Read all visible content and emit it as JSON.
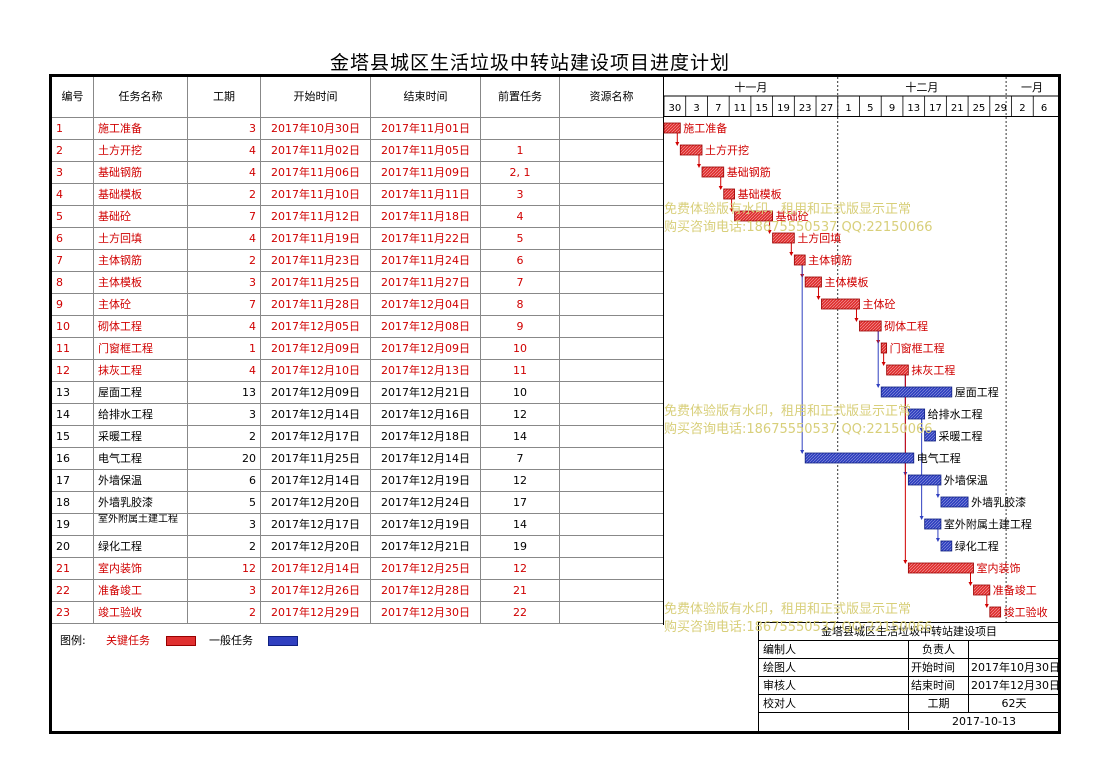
{
  "title": "金塔县城区生活垃圾中转站建设项目进度计划",
  "columns": {
    "id": "编号",
    "name": "任务名称",
    "duration": "工期",
    "start": "开始时间",
    "end": "结束时间",
    "pred": "前置任务",
    "resource": "资源名称"
  },
  "timeline": {
    "months": [
      "十一月",
      "十二月",
      "一月"
    ],
    "days": [
      "30",
      "3",
      "7",
      "11",
      "15",
      "19",
      "23",
      "27",
      "1",
      "5",
      "9",
      "13",
      "17",
      "21",
      "25",
      "29",
      "2",
      "6"
    ]
  },
  "tasks": [
    {
      "id": "1",
      "name": "施工准备",
      "duration": "3",
      "start": "2017年10月30日",
      "end": "2017年11月01日",
      "pred": "",
      "critical": true
    },
    {
      "id": "2",
      "name": "土方开挖",
      "duration": "4",
      "start": "2017年11月02日",
      "end": "2017年11月05日",
      "pred": "1",
      "critical": true
    },
    {
      "id": "3",
      "name": "基础钢筋",
      "duration": "4",
      "start": "2017年11月06日",
      "end": "2017年11月09日",
      "pred": "2, 1",
      "critical": true
    },
    {
      "id": "4",
      "name": "基础模板",
      "duration": "2",
      "start": "2017年11月10日",
      "end": "2017年11月11日",
      "pred": "3",
      "critical": true
    },
    {
      "id": "5",
      "name": "基础砼",
      "duration": "7",
      "start": "2017年11月12日",
      "end": "2017年11月18日",
      "pred": "4",
      "critical": true
    },
    {
      "id": "6",
      "name": "土方回填",
      "duration": "4",
      "start": "2017年11月19日",
      "end": "2017年11月22日",
      "pred": "5",
      "critical": true
    },
    {
      "id": "7",
      "name": "主体钢筋",
      "duration": "2",
      "start": "2017年11月23日",
      "end": "2017年11月24日",
      "pred": "6",
      "critical": true
    },
    {
      "id": "8",
      "name": "主体模板",
      "duration": "3",
      "start": "2017年11月25日",
      "end": "2017年11月27日",
      "pred": "7",
      "critical": true
    },
    {
      "id": "9",
      "name": "主体砼",
      "duration": "7",
      "start": "2017年11月28日",
      "end": "2017年12月04日",
      "pred": "8",
      "critical": true
    },
    {
      "id": "10",
      "name": "砌体工程",
      "duration": "4",
      "start": "2017年12月05日",
      "end": "2017年12月08日",
      "pred": "9",
      "critical": true
    },
    {
      "id": "11",
      "name": "门窗框工程",
      "duration": "1",
      "start": "2017年12月09日",
      "end": "2017年12月09日",
      "pred": "10",
      "critical": true
    },
    {
      "id": "12",
      "name": "抹灰工程",
      "duration": "4",
      "start": "2017年12月10日",
      "end": "2017年12月13日",
      "pred": "11",
      "critical": true
    },
    {
      "id": "13",
      "name": "屋面工程",
      "duration": "13",
      "start": "2017年12月09日",
      "end": "2017年12月21日",
      "pred": "10",
      "critical": false
    },
    {
      "id": "14",
      "name": "给排水工程",
      "duration": "3",
      "start": "2017年12月14日",
      "end": "2017年12月16日",
      "pred": "12",
      "critical": false
    },
    {
      "id": "15",
      "name": "采暖工程",
      "duration": "2",
      "start": "2017年12月17日",
      "end": "2017年12月18日",
      "pred": "14",
      "critical": false
    },
    {
      "id": "16",
      "name": "电气工程",
      "duration": "20",
      "start": "2017年11月25日",
      "end": "2017年12月14日",
      "pred": "7",
      "critical": false
    },
    {
      "id": "17",
      "name": "外墙保温",
      "duration": "6",
      "start": "2017年12月14日",
      "end": "2017年12月19日",
      "pred": "12",
      "critical": false
    },
    {
      "id": "18",
      "name": "外墙乳胶漆",
      "duration": "5",
      "start": "2017年12月20日",
      "end": "2017年12月24日",
      "pred": "17",
      "critical": false
    },
    {
      "id": "19",
      "name": "室外附属土建工程",
      "duration": "3",
      "start": "2017年12月17日",
      "end": "2017年12月19日",
      "pred": "14",
      "critical": false
    },
    {
      "id": "20",
      "name": "绿化工程",
      "duration": "2",
      "start": "2017年12月20日",
      "end": "2017年12月21日",
      "pred": "19",
      "critical": false
    },
    {
      "id": "21",
      "name": "室内装饰",
      "duration": "12",
      "start": "2017年12月14日",
      "end": "2017年12月25日",
      "pred": "12",
      "critical": true
    },
    {
      "id": "22",
      "name": "准备竣工",
      "duration": "3",
      "start": "2017年12月26日",
      "end": "2017年12月28日",
      "pred": "21",
      "critical": true
    },
    {
      "id": "23",
      "name": "竣工验收",
      "duration": "2",
      "start": "2017年12月29日",
      "end": "2017年12月30日",
      "pred": "22",
      "critical": true
    }
  ],
  "legend": {
    "label": "图例:",
    "critical": "关键任务",
    "normal": "一般任务"
  },
  "colors": {
    "critical": "#d00000",
    "critical_fill": "#e03030",
    "normal_fill": "#3040c0",
    "watermark": "#d8cf7a"
  },
  "signoff": {
    "project": "金塔县城区生活垃圾中转站建设项目",
    "editor": "编制人",
    "owner": "负责人",
    "drawer": "绘图人",
    "start_label": "开始时间",
    "start_value": "2017年10月30日",
    "reviewer": "审核人",
    "end_label": "结束时间",
    "end_value": "2017年12月30日",
    "checker": "校对人",
    "duration_label": "工期",
    "duration_value": "62天",
    "date": "2017-10-13"
  },
  "watermark": {
    "line1": "免费体验版有水印，租用和正式版显示正常",
    "line2": "购买咨询电话:18675550537 QQ:22150066"
  }
}
